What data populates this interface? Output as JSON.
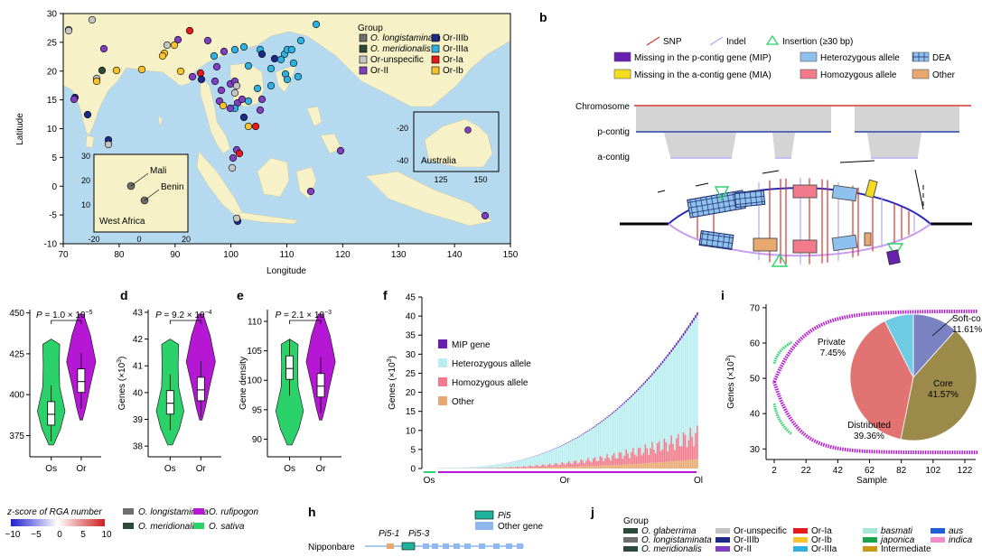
{
  "panel_labels": {
    "b": "b",
    "d": "d",
    "e": "e",
    "f": "f",
    "i": "i",
    "h": "h",
    "j": "j"
  },
  "colors": {
    "longistaminata": "#6e6e6e",
    "meridionalis": "#2c4a3a",
    "unspecific": "#c4c4c4",
    "orII": "#7f3fbf",
    "orIIIb": "#1c2a8a",
    "orIIIa": "#2eb1e0",
    "orIa": "#e41a1c",
    "orIb": "#f7c22b",
    "land": "#f6f1c7",
    "sea": "#b5d9ef",
    "green": "#2bd26a",
    "purple": "#b517d4",
    "snp": "#d6342f",
    "indel": "#b3a8ef",
    "mip": "#6a1fb3",
    "mia": "#f3dc1e",
    "het": "#8fc1ee",
    "hom": "#f27a8a",
    "other": "#e8a870",
    "contig": "#d4d4d4"
  },
  "panel_a": {
    "legend_title": "Group",
    "legend_items": [
      {
        "key": "longistaminata",
        "label": "O. longistaminata",
        "italic": true
      },
      {
        "key": "orIIIb",
        "label": "Or-IIIb",
        "italic": false
      },
      {
        "key": "meridionalis",
        "label": "O. meridionalis",
        "italic": true
      },
      {
        "key": "orIIIa",
        "label": "Or-IIIa",
        "italic": false
      },
      {
        "key": "unspecific",
        "label": "Or-unspecific",
        "italic": false
      },
      {
        "key": "orIa",
        "label": "Or-Ia",
        "italic": false
      },
      {
        "key": "orII",
        "label": "Or-II",
        "italic": false
      },
      {
        "key": "orIb",
        "label": "Or-Ib",
        "italic": false
      }
    ],
    "xlabel": "Longitude",
    "ylabel": "Latitude",
    "xticks": [
      "70",
      "80",
      "90",
      "100",
      "110",
      "120",
      "130",
      "140",
      "150"
    ],
    "yticks": [
      "30",
      "25",
      "20",
      "15",
      "10",
      "5",
      "0",
      "-5",
      "-10"
    ],
    "inset_africa": {
      "label": "West Africa",
      "points": [
        "Mali",
        "Benin"
      ],
      "xticks": [
        "-20",
        "0",
        "20"
      ],
      "yticks": [
        "30",
        "20",
        "10"
      ]
    },
    "inset_australia": {
      "label": "Australia",
      "xticks": [
        "125",
        "150"
      ],
      "yticks": [
        "-20",
        "-40"
      ]
    }
  },
  "panel_b": {
    "legend": [
      {
        "key": "snp",
        "label": "SNP"
      },
      {
        "key": "indel",
        "label": "Indel"
      },
      {
        "key": "ins",
        "label": "Insertion (≥30 bp)"
      },
      {
        "key": "mip",
        "label": "Missing in the p-contig gene (MIP)"
      },
      {
        "key": "het",
        "label": "Heterozygous allele"
      },
      {
        "key": "dea",
        "label": "DEA"
      },
      {
        "key": "mia",
        "label": "Missing in the a-contig gene (MIA)"
      },
      {
        "key": "hom",
        "label": "Homozygous allele"
      },
      {
        "key": "other",
        "label": "Other"
      }
    ],
    "tracks": [
      "Chromosome",
      "p-contig",
      "a-contig"
    ]
  },
  "chart_data": [
    {
      "type": "violin",
      "panel": "c",
      "categories": [
        "Os",
        "Or"
      ],
      "ylim": [
        362,
        452
      ],
      "yticks": [
        "450",
        "425",
        "400",
        "375"
      ],
      "medians": [
        388,
        408
      ],
      "pvalue_base": "P = 1.0 × 10",
      "pvalue_exp": "−5"
    },
    {
      "type": "violin",
      "panel": "d",
      "categories": [
        "Os",
        "Or"
      ],
      "ylabel_main": "Genes (×10",
      "ylabel_exp": "3",
      "ylabel_close": ")",
      "ylim": [
        37.6,
        43.1
      ],
      "yticks": [
        "43",
        "42",
        "41",
        "40",
        "39",
        "38"
      ],
      "medians": [
        39.6,
        40.1
      ],
      "pvalue_base": "P = 9.2 × 10",
      "pvalue_exp": "−4"
    },
    {
      "type": "violin",
      "panel": "e",
      "categories": [
        "Os",
        "Or"
      ],
      "ylabel": "Gene density",
      "ylim": [
        87,
        112
      ],
      "yticks": [
        "110",
        "105",
        "100",
        "95",
        "90"
      ],
      "medians": [
        102,
        99
      ],
      "pvalue_base": "P = 2.1 × 10",
      "pvalue_exp": "−3"
    },
    {
      "type": "bar",
      "panel": "f",
      "ylabel_main": "Genes (×10",
      "ylabel_exp": "3",
      "ylabel_close": ")",
      "ylim": [
        0,
        45
      ],
      "yticks": [
        "45",
        "40",
        "35",
        "30",
        "25",
        "20",
        "15",
        "10",
        "5",
        "0"
      ],
      "x_groups": [
        "Os",
        "Or",
        "Ol"
      ],
      "series": [
        {
          "name": "MIP gene",
          "key": "mip"
        },
        {
          "name": "Heterozygous allele",
          "key": "het"
        },
        {
          "name": "Homozygous allele",
          "key": "hom"
        },
        {
          "name": "Other",
          "key": "other"
        }
      ],
      "totals_range": [
        0.2,
        41
      ]
    },
    {
      "type": "pie",
      "panel": "i",
      "ylabel_main": "Genes (×10",
      "ylabel_exp": "3",
      "ylabel_close": ")",
      "xlabel": "Sample",
      "ylim": [
        27,
        71
      ],
      "yticks": [
        "70",
        "60",
        "50",
        "40",
        "30"
      ],
      "xticks": [
        "2",
        "22",
        "42",
        "62",
        "82",
        "102",
        "122"
      ],
      "slices": [
        {
          "name": "Core",
          "value": 41.57,
          "label": "Core\n41.57%",
          "color": "#9b8a4a"
        },
        {
          "name": "Distributed",
          "value": 39.36,
          "label": "Distributed\n39.36%",
          "color": "#e27373"
        },
        {
          "name": "Private",
          "value": 7.45,
          "label": "Private\n7.45%",
          "color": "#6ecbe3"
        },
        {
          "name": "Soft-core",
          "value": 11.61,
          "label": "Soft-co\n11.61%",
          "color": "#7b82c2"
        }
      ]
    }
  ],
  "panel_g": {
    "title": "z-score of RGA number",
    "ticks": [
      "−10",
      "−5",
      "0",
      "5",
      "10"
    ],
    "legend": [
      {
        "key": "longistaminata",
        "label": "O. longistaminata"
      },
      {
        "key": "rufipogon",
        "label": "O. rufipogon",
        "color": "#b517d4"
      },
      {
        "key": "meridionalis",
        "label": "O. meridionalis"
      },
      {
        "key": "sativa",
        "label": "O. sativa",
        "color": "#2bd26a"
      }
    ]
  },
  "panel_h": {
    "legend": [
      {
        "label": "Pi5",
        "color": "#1fb39a"
      },
      {
        "label": "Other gene",
        "color": "#8fb8ee"
      }
    ],
    "genes": [
      "Pi5-1",
      "Pi5-3"
    ],
    "track": "Nipponbare"
  },
  "panel_j": {
    "title": "Group",
    "items": [
      {
        "label": "O. glaberrima",
        "color": "#2c4a3a",
        "italic": true
      },
      {
        "label": "Or-unspecific",
        "color": "#c4c4c4",
        "italic": false
      },
      {
        "label": "Or-Ia",
        "color": "#e41a1c",
        "italic": false
      },
      {
        "label": "basmati",
        "color": "#a5e8d6",
        "italic": true
      },
      {
        "label": "aus",
        "color": "#1f5fd6",
        "italic": true
      },
      {
        "label": "O. longistaminata",
        "color": "#6e6e6e",
        "italic": true
      },
      {
        "label": "Or-IIIb",
        "color": "#1c2a8a",
        "italic": false
      },
      {
        "label": "Or-Ib",
        "color": "#f7c22b",
        "italic": false
      },
      {
        "label": "japonica",
        "color": "#1aa34a",
        "italic": true
      },
      {
        "label": "indica",
        "color": "#f18ccf",
        "italic": true
      },
      {
        "label": "O. meridionalis",
        "color": "#2c4a3a",
        "italic": true
      },
      {
        "label": "Or-II",
        "color": "#7f3fbf",
        "italic": false
      },
      {
        "label": "Or-IIIa",
        "color": "#2eb1e0",
        "italic": false
      },
      {
        "label": "Intermediate",
        "color": "#c79a14",
        "italic": false
      }
    ]
  }
}
